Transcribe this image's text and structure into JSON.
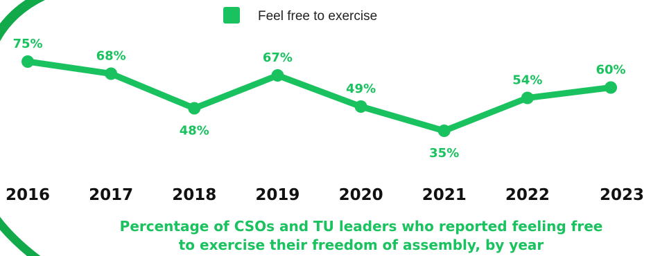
{
  "chart_data": {
    "type": "line",
    "title": "Percentage of CSOs and TU leaders who reported feeling free to exercise their freedom of assembly, by year",
    "title_lines": [
      "Percentage of CSOs and TU leaders who reported feeling free",
      "to exercise their freedom of assembly, by year"
    ],
    "categories": [
      "2016",
      "2017",
      "2018",
      "2019",
      "2020",
      "2021",
      "2022",
      "2023"
    ],
    "series": [
      {
        "name": "Feel free to exercise",
        "values": [
          75,
          68,
          48,
          67,
          49,
          35,
          54,
          60
        ],
        "labels": [
          "75%",
          "68%",
          "48%",
          "67%",
          "49%",
          "35%",
          "54%",
          "60%"
        ],
        "label_positions": [
          "above",
          "above",
          "below",
          "above",
          "above",
          "below",
          "above",
          "above"
        ]
      }
    ],
    "ylim": [
      0,
      100
    ],
    "grid": false,
    "legend": "top-center",
    "colors": {
      "line": "#19c25e",
      "text": "#19c25e",
      "legend_text": "#222222",
      "tick_text": "#111111",
      "decoration": "#12a94a"
    }
  }
}
